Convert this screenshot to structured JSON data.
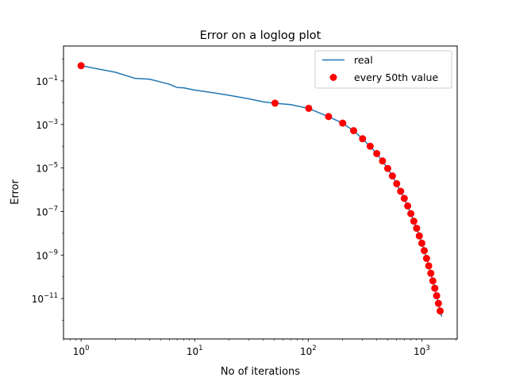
{
  "chart_data": {
    "type": "line",
    "title": "Error on a loglog plot",
    "xlabel": "No of iterations",
    "ylabel": "Error",
    "xscale": "log",
    "yscale": "log",
    "xlim": [
      0.7,
      2050
    ],
    "ylim": [
      1.4e-13,
      4.0
    ],
    "grid": false,
    "legend_position": "top-right",
    "xticks": [
      {
        "value": 1,
        "base": "10",
        "exp": "0"
      },
      {
        "value": 10,
        "base": "10",
        "exp": "1"
      },
      {
        "value": 100,
        "base": "10",
        "exp": "2"
      },
      {
        "value": 1000,
        "base": "10",
        "exp": "3"
      }
    ],
    "yticks": [
      {
        "value": 1e-11,
        "base": "10",
        "exp": "−11"
      },
      {
        "value": 1e-09,
        "base": "10",
        "exp": "−9"
      },
      {
        "value": 1e-07,
        "base": "10",
        "exp": "−7"
      },
      {
        "value": 1e-05,
        "base": "10",
        "exp": "−5"
      },
      {
        "value": 0.001,
        "base": "10",
        "exp": "−3"
      },
      {
        "value": 0.1,
        "base": "10",
        "exp": "−1"
      }
    ],
    "series": [
      {
        "name": "real",
        "style": "line",
        "color": "#1f77b4",
        "x": [
          1,
          2,
          3,
          4,
          5,
          6,
          7,
          8,
          10,
          15,
          20,
          30,
          40,
          50,
          70,
          100,
          150,
          200,
          250,
          300,
          350,
          400,
          450,
          500,
          550,
          600,
          650,
          700,
          750,
          800,
          850,
          900,
          950,
          1000,
          1050,
          1100,
          1150,
          1200,
          1250,
          1300,
          1350,
          1400,
          1450,
          1500
        ],
        "y": [
          0.5,
          0.25,
          0.13,
          0.12,
          0.09,
          0.07,
          0.05,
          0.048,
          0.038,
          0.028,
          0.022,
          0.015,
          0.011,
          0.0095,
          0.0082,
          0.0055,
          0.0023,
          0.00115,
          0.00052,
          0.00022,
          0.0001,
          4.6e-05,
          2.1e-05,
          9.5e-06,
          4.3e-06,
          1.9e-06,
          8.5e-07,
          4e-07,
          1.8e-07,
          8e-08,
          3.6e-08,
          1.7e-08,
          7.6e-09,
          3.5e-09,
          1.6e-09,
          7e-10,
          3.2e-10,
          1.45e-10,
          6.5e-11,
          3e-11,
          1.35e-11,
          6e-12,
          2.7e-12,
          1.5e-12
        ]
      },
      {
        "name": "every 50th value",
        "style": "marker",
        "color": "#ff0000",
        "x": [
          1,
          51,
          101,
          151,
          201,
          251,
          301,
          351,
          401,
          451,
          501,
          551,
          601,
          651,
          701,
          751,
          801,
          851,
          901,
          951,
          1001,
          1051,
          1101,
          1151,
          1201,
          1251,
          1301,
          1351,
          1401,
          1451
        ],
        "y": [
          0.5,
          0.0095,
          0.0055,
          0.0023,
          0.00115,
          0.00052,
          0.00022,
          0.0001,
          4.6e-05,
          2.1e-05,
          9.5e-06,
          4.3e-06,
          1.9e-06,
          8.5e-07,
          4e-07,
          1.8e-07,
          8e-08,
          3.6e-08,
          1.7e-08,
          7.6e-09,
          3.5e-09,
          1.6e-09,
          7e-10,
          3.2e-10,
          1.45e-10,
          6.5e-11,
          3e-11,
          1.35e-11,
          6e-12,
          2.7e-12
        ]
      }
    ]
  }
}
